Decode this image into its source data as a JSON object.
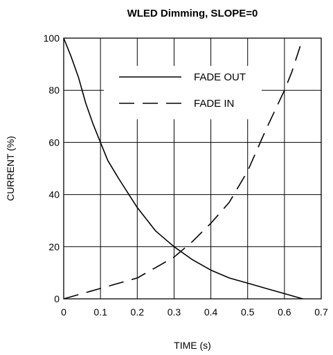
{
  "chart_data": {
    "type": "line",
    "title": "WLED Dimming, SLOPE=0",
    "xlabel": "TIME (s)",
    "ylabel": "CURRENT (%)",
    "xlim": [
      0,
      0.7
    ],
    "ylim": [
      0,
      100
    ],
    "xticks": [
      "0",
      "0.1",
      "0.2",
      "0.3",
      "0.4",
      "0.5",
      "0.6",
      "0.7"
    ],
    "yticks": [
      "0",
      "20",
      "40",
      "60",
      "80",
      "100"
    ],
    "grid": true,
    "legend": "top-center",
    "series": [
      {
        "name": "FADE OUT",
        "style": "solid",
        "color": "#000000",
        "x": [
          0,
          0.02,
          0.04,
          0.06,
          0.08,
          0.1,
          0.12,
          0.15,
          0.2,
          0.25,
          0.3,
          0.35,
          0.4,
          0.45,
          0.5,
          0.55,
          0.6,
          0.65
        ],
        "y": [
          100,
          93,
          85,
          75,
          67,
          60,
          53,
          46,
          35,
          26,
          20,
          15,
          11,
          8,
          6,
          4,
          2,
          0
        ]
      },
      {
        "name": "FADE IN",
        "style": "dashed",
        "color": "#000000",
        "x": [
          0,
          0.05,
          0.1,
          0.15,
          0.2,
          0.25,
          0.3,
          0.35,
          0.4,
          0.45,
          0.5,
          0.55,
          0.6,
          0.62,
          0.65
        ],
        "y": [
          0,
          2,
          4,
          6,
          8,
          12,
          16,
          22,
          29,
          37,
          49,
          65,
          80,
          87,
          100
        ]
      }
    ]
  }
}
